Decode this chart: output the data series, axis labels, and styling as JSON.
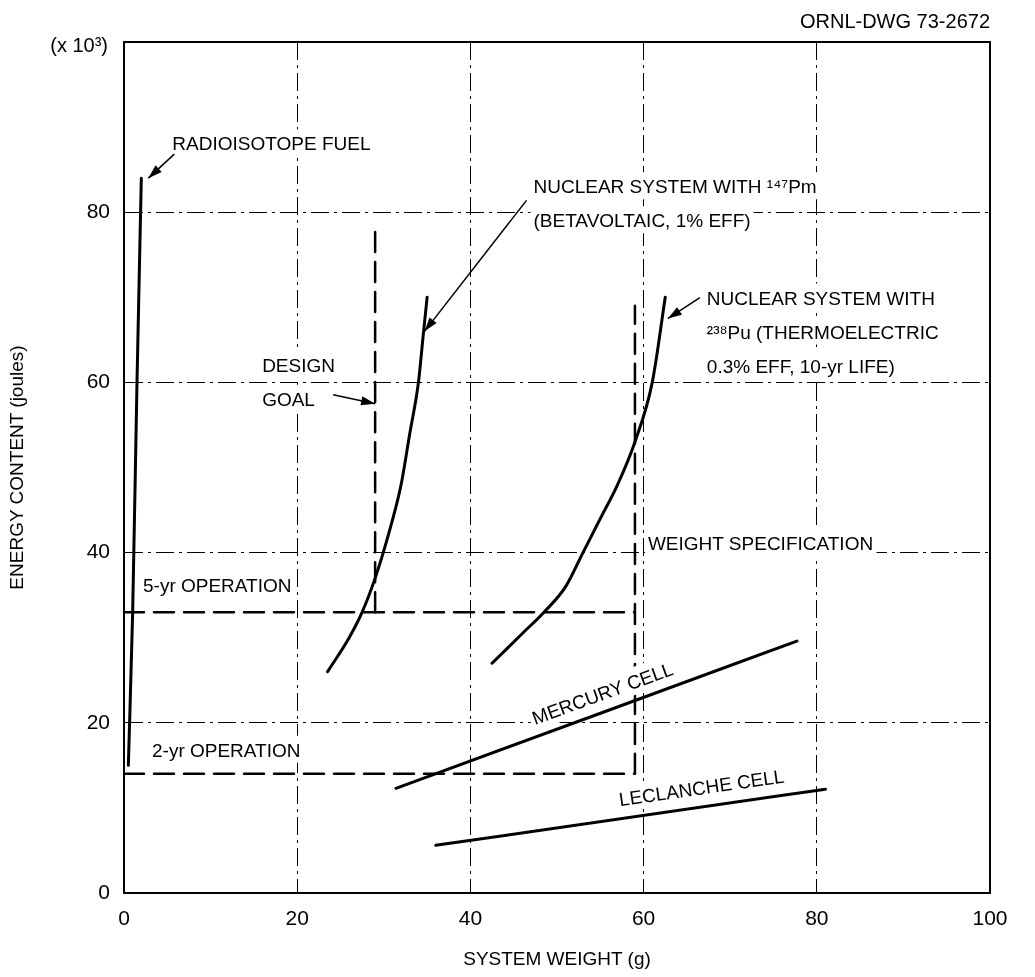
{
  "chart_data": {
    "type": "line",
    "xlabel": "SYSTEM WEIGHT (g)",
    "ylabel": "ENERGY CONTENT (joules)",
    "xlim": [
      0,
      100
    ],
    "ylim": [
      0,
      100
    ],
    "xticks": [
      0,
      20,
      40,
      60,
      80,
      100
    ],
    "yticks": [
      0,
      20,
      40,
      60,
      80,
      {
        "value": 100,
        "label": null
      }
    ],
    "grid": true,
    "marker": "none",
    "series": [
      {
        "color": "#000000",
        "line_style": "solid",
        "x": [
          0.5,
          1,
          1.5,
          2
        ],
        "values": [
          15,
          33,
          60,
          84
        ]
      },
      {
        "color": "#000000",
        "line_style": "solid",
        "x": [
          23.5,
          26,
          27.5,
          29,
          30.5,
          32,
          33,
          34,
          34.5,
          35
        ],
        "values": [
          26,
          30,
          33,
          37,
          42,
          48,
          54,
          60,
          65,
          70
        ]
      },
      {
        "color": "#000000",
        "line_style": "solid",
        "x": [
          42.5,
          46,
          48.5,
          51,
          53,
          55,
          57,
          59,
          61,
          62.5
        ],
        "values": [
          27,
          30.5,
          33,
          36,
          40,
          44,
          48,
          53,
          60,
          70
        ]
      },
      {
        "color": "#000000",
        "line_style": "solid",
        "x": [
          31.4,
          77.7
        ],
        "values": [
          12.3,
          29.6
        ]
      },
      {
        "color": "#000000",
        "line_style": "solid",
        "x": [
          36,
          81
        ],
        "values": [
          5.6,
          12.2
        ]
      },
      {
        "color": "#000000",
        "line_style": "dashed",
        "x": [
          0,
          59
        ],
        "values": [
          33,
          33
        ]
      },
      {
        "color": "#000000",
        "line_style": "dashed",
        "x": [
          0,
          59
        ],
        "values": [
          14,
          14
        ]
      },
      {
        "color": "#000000",
        "line_style": "dashed",
        "x": [
          29,
          29
        ],
        "values": [
          33,
          78
        ]
      },
      {
        "color": "#000000",
        "line_style": "dashed",
        "x": [
          59,
          59
        ],
        "values": [
          14,
          69
        ]
      }
    ],
    "annotations": [
      {
        "text": "RADIOISOTOPE FUEL",
        "x": 2,
        "y": 84
      },
      {
        "text": "NUCLEAR SYSTEM WITH ¹⁴⁷Pm\n(BETAVOLTAIC, 1% EFF)",
        "x": 34.7,
        "y": 66
      },
      {
        "text": "NUCLEAR SYSTEM WITH\n²³⁸Pu (THERMOELECTRIC\n0.3% EFF, 10-yr LIFE)",
        "x": 62.8,
        "y": 67.5
      },
      {
        "text": "DESIGN\nGOAL",
        "x": 29,
        "y": 57.5
      },
      {
        "text": "WEIGHT SPECIFICATION",
        "x": 59,
        "y": 41
      },
      {
        "text": "5-yr OPERATION",
        "x": 0,
        "y": 33
      },
      {
        "text": "2-yr OPERATION",
        "x": 0,
        "y": 14
      },
      {
        "text": "MERCURY CELL",
        "x": 56,
        "y": 21.4
      },
      {
        "text": "LECLANCHE CELL",
        "x": 67,
        "y": 10.2
      },
      "ORNL-DWG 73-2672",
      "(x 10³)"
    ]
  }
}
